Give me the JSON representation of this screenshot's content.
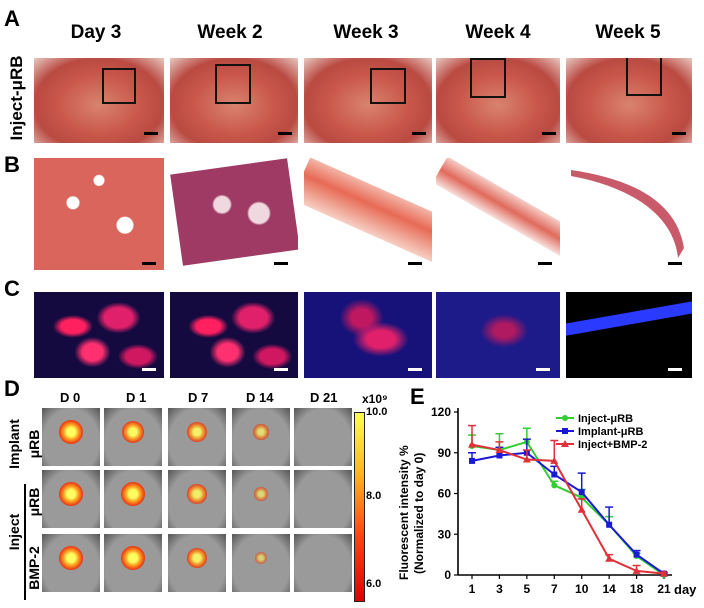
{
  "panels": {
    "a": "A",
    "b": "B",
    "c": "C",
    "d": "D",
    "e": "E"
  },
  "panel_a": {
    "row_label": "Inject-μRB",
    "columns": [
      "Day 3",
      "Week 2",
      "Week 3",
      "Week 4",
      "Week 5"
    ]
  },
  "panel_d": {
    "columns": [
      "D 0",
      "D 1",
      "D 7",
      "D 14",
      "D 21"
    ],
    "group1_label_top": "Implant",
    "group1_label_bottom": "μRB",
    "group2_label_top": "Inject",
    "group2_label_mid": "μRB",
    "group2_label_bottom": "BMP-2",
    "colorbar_unit": "x10⁹",
    "colorbar_ticks": [
      "10.0",
      "8.0",
      "6.0"
    ],
    "spot_intensity": {
      "implant": [
        1,
        0.9,
        0.75,
        0.45,
        0
      ],
      "inject": [
        1,
        1,
        0.7,
        0.35,
        0
      ],
      "inject_bmp2": [
        1,
        1,
        0.8,
        0.25,
        0
      ]
    }
  },
  "chart_data": {
    "type": "line",
    "title": "",
    "ylabel_line1": "Fluorescent intensity %",
    "ylabel_line2": "(Normalized to day 0)",
    "xlabel": "day",
    "categories": [
      "1",
      "3",
      "5",
      "7",
      "10",
      "14",
      "18",
      "21"
    ],
    "ylim": [
      0,
      120
    ],
    "yticks": [
      "0",
      "30",
      "60",
      "90",
      "120"
    ],
    "series": [
      {
        "name": "Inject-μRB",
        "color": "#33cc33",
        "values": [
          95,
          92,
          98,
          66,
          57,
          37,
          14,
          0
        ],
        "errors": [
          8,
          12,
          10,
          3,
          6,
          6,
          2,
          1
        ]
      },
      {
        "name": "Implant-μRB",
        "color": "#1a1ad6",
        "values": [
          84,
          88,
          90,
          74,
          61,
          37,
          15,
          1
        ],
        "errors": [
          6,
          6,
          10,
          6,
          14,
          13,
          3,
          1
        ]
      },
      {
        "name": "Inject+BMP-2",
        "color": "#e0303a",
        "values": [
          96,
          92,
          85,
          84,
          48,
          12,
          3,
          1
        ],
        "errors": [
          14,
          6,
          7,
          15,
          8,
          3,
          4,
          1
        ]
      }
    ]
  }
}
